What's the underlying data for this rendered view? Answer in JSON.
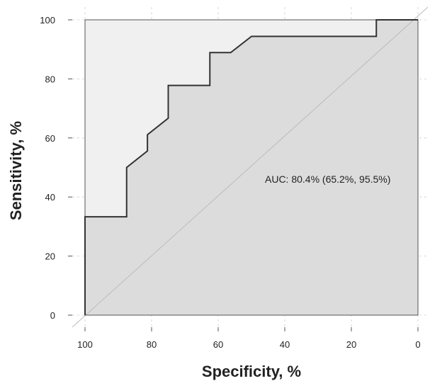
{
  "chart_data": {
    "type": "line",
    "title": "",
    "xlabel": "Specificity, %",
    "ylabel": "Sensitivity, %",
    "xlim": [
      100,
      0
    ],
    "ylim": [
      0,
      100
    ],
    "x_reversed": true,
    "xticks": [
      100,
      80,
      60,
      40,
      20,
      0
    ],
    "yticks": [
      0,
      20,
      40,
      60,
      80,
      100
    ],
    "grid": true,
    "diagonal_reference": true,
    "annotation": "AUC: 80.4% (65.2%, 95.5%)",
    "colors": {
      "curve": "#333333",
      "area_under": "#dcdcdc",
      "area_above": "#f0f0f0",
      "diagonal": "#bbbbbb",
      "grid": "#cccccc"
    },
    "series": [
      {
        "specificity": [
          100,
          100,
          87.5,
          87.5,
          81.25,
          81.25,
          75,
          75,
          62.5,
          62.5,
          56.25,
          50,
          50,
          12.5,
          12.5,
          0
        ],
        "sensitivity": [
          0,
          33.3,
          33.3,
          50,
          55.6,
          61.1,
          66.7,
          77.8,
          77.8,
          88.9,
          88.9,
          94.4,
          94.4,
          94.4,
          100,
          100
        ]
      }
    ]
  }
}
